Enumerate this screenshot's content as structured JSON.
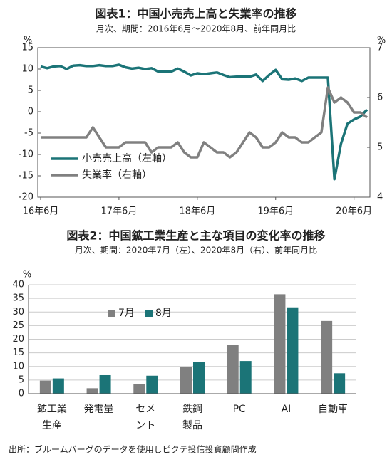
{
  "chart_data": [
    {
      "type": "line",
      "title": "図表1：中国小売売上高と失業率の推移",
      "subtitle": "月次、期間：2016年6月～2020年8月、前年同月比",
      "y_unit": "%",
      "y2_unit": "%",
      "categories": [
        "16年6月",
        null,
        null,
        null,
        null,
        null,
        null,
        null,
        null,
        null,
        null,
        null,
        "17年6月",
        null,
        null,
        null,
        null,
        null,
        null,
        null,
        null,
        null,
        null,
        null,
        "18年6月",
        null,
        null,
        null,
        null,
        null,
        null,
        null,
        null,
        null,
        null,
        null,
        "19年6月",
        null,
        null,
        null,
        null,
        null,
        null,
        null,
        null,
        null,
        null,
        null,
        "20年6月",
        null,
        null
      ],
      "series": [
        {
          "name": "小売売上高（左軸）",
          "color": "#1b7477",
          "values": [
            10.6,
            10.2,
            10.6,
            10.7,
            10.0,
            10.8,
            10.9,
            10.7,
            10.7,
            10.9,
            10.7,
            10.7,
            11.0,
            10.4,
            10.1,
            10.3,
            10.0,
            10.2,
            9.4,
            9.4,
            9.4,
            10.1,
            9.4,
            8.5,
            9.0,
            8.8,
            9.0,
            9.2,
            8.6,
            8.1,
            8.2,
            8.2,
            8.2,
            8.7,
            7.2,
            8.6,
            9.8,
            7.6,
            7.5,
            7.8,
            7.2,
            8.0,
            8.0,
            8.0,
            8.0,
            -15.8,
            -7.5,
            -2.8,
            -1.8,
            -1.1,
            0.5
          ]
        },
        {
          "name": "失業率（右軸）",
          "color": "#808080",
          "axis": "y2",
          "values": [
            5.2,
            5.2,
            5.2,
            5.2,
            5.2,
            5.2,
            5.2,
            5.2,
            5.4,
            5.2,
            5.0,
            5.0,
            5.0,
            5.1,
            5.1,
            5.1,
            5.1,
            4.9,
            5.0,
            5.0,
            5.0,
            5.1,
            4.9,
            4.8,
            4.8,
            5.1,
            5.0,
            4.9,
            4.9,
            4.8,
            4.9,
            5.1,
            5.3,
            5.2,
            5.0,
            5.0,
            5.1,
            5.3,
            5.2,
            5.2,
            5.1,
            5.1,
            5.2,
            5.3,
            6.2,
            5.9,
            6.0,
            5.9,
            5.7,
            5.7,
            5.6
          ]
        }
      ],
      "ylim": [
        -20,
        15
      ],
      "yticks": [
        -20,
        -15,
        -10,
        -5,
        0,
        5,
        10,
        15
      ],
      "y2lim": [
        4,
        7
      ],
      "y2ticks": [
        4,
        5,
        6,
        7
      ],
      "grid": false,
      "legend": "lower left"
    },
    {
      "type": "bar",
      "title": "図表2：中国鉱工業生産と主な項目の変化率の推移",
      "subtitle": "月次、期間：2020年7月（左）、2020年8月（右）、前年同月比",
      "y_unit": "%",
      "categories": [
        "鉱工業\n生産",
        "発電量",
        "セメ\nント",
        "鉄鋼\n製品",
        "PC",
        "AI",
        "自動車"
      ],
      "series": [
        {
          "name": "7月",
          "color": "#808080",
          "values": [
            4.8,
            2.0,
            3.5,
            9.8,
            17.8,
            36.5,
            26.7
          ]
        },
        {
          "name": "8月",
          "color": "#1b7477",
          "values": [
            5.6,
            6.8,
            6.6,
            11.6,
            12.0,
            31.7,
            7.5
          ]
        }
      ],
      "ylim": [
        0,
        40
      ],
      "yticks": [
        0,
        5,
        10,
        15,
        20,
        25,
        30,
        35,
        40
      ],
      "grid": true,
      "legend": "upper left"
    }
  ],
  "source": "出所：ブルームバーグのデータを使用しピクテ投信投資顧問作成"
}
